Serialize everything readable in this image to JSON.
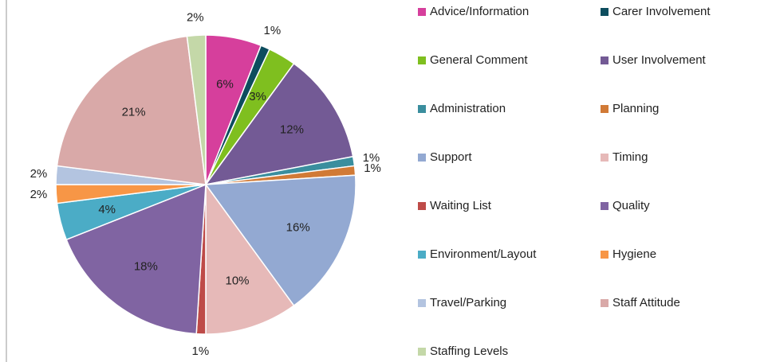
{
  "chart_data": {
    "type": "pie",
    "categories": [
      "Advice/Information",
      "Carer Involvement",
      "General Comment",
      "User Involvement",
      "Administration",
      "Planning",
      "Support",
      "Timing",
      "Waiting List",
      "Quality",
      "Environment/Layout",
      "Hygiene",
      "Travel/Parking",
      "Staff Attitude",
      "Staffing Levels"
    ],
    "values": [
      6,
      1,
      3,
      12,
      1,
      1,
      16,
      10,
      1,
      18,
      4,
      2,
      2,
      21,
      2
    ],
    "value_labels": [
      "6%",
      "1%",
      "3%",
      "12%",
      "1%",
      "1%",
      "16%",
      "10%",
      "1%",
      "18%",
      "4%",
      "2%",
      "2%",
      "21%",
      "2%"
    ],
    "colors": [
      "#d63f9c",
      "#0d4d5e",
      "#7fbf1f",
      "#735a95",
      "#3a8e9e",
      "#d17a36",
      "#93a9d2",
      "#e6b9b8",
      "#be4b48",
      "#8064a2",
      "#4bacc6",
      "#f79646",
      "#b3c4e0",
      "#d9a9a8",
      "#c4d8a8"
    ],
    "legend": "right"
  }
}
